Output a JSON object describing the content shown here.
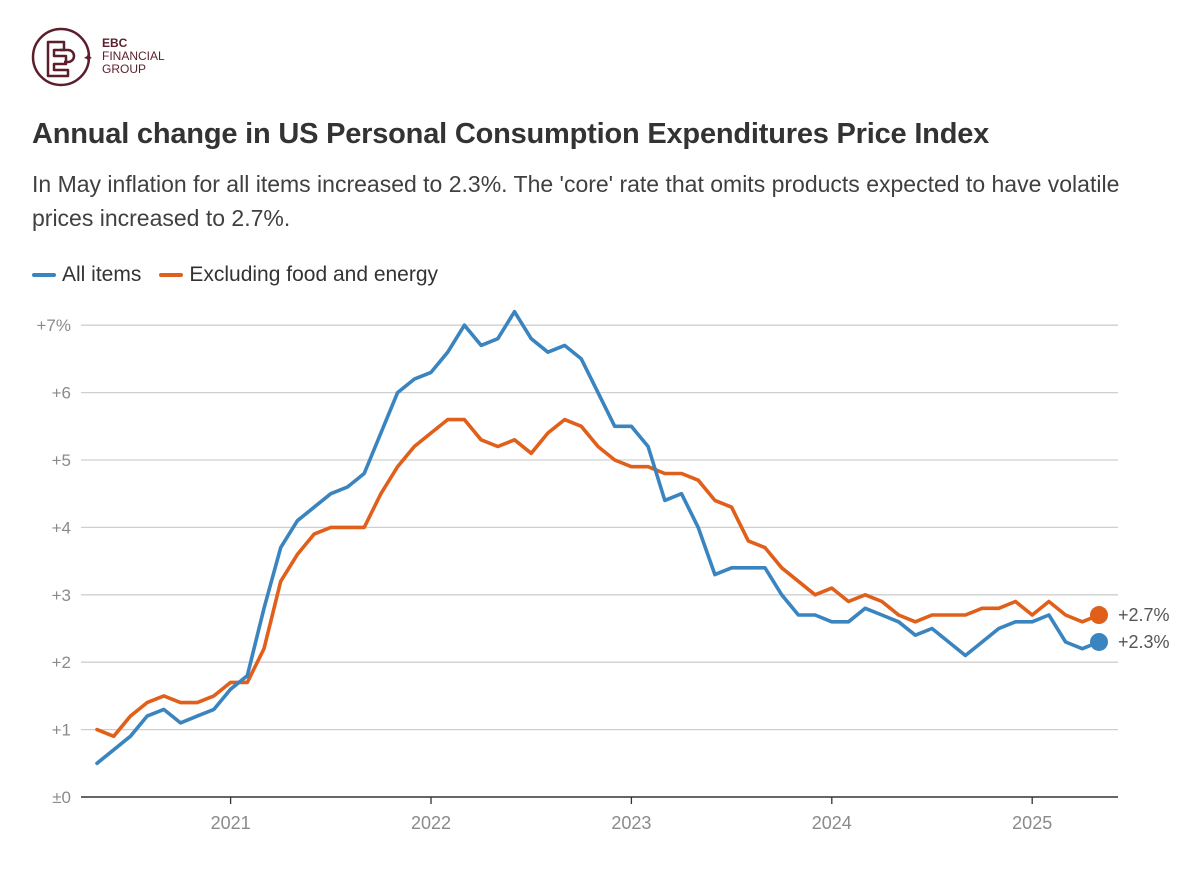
{
  "logo": {
    "brand": "EBC",
    "line2": "FINANCIAL",
    "line3": "GROUP",
    "color": "#5b1e2c"
  },
  "chart_data": {
    "type": "line",
    "title": "Annual change in US Personal Consumption Expenditures Price Index",
    "subtitle": "In May inflation for all items increased to 2.3%. The 'core' rate that omits products expected to have volatile prices increased to 2.7%.",
    "x_start": "2020-05",
    "x_end": "2025-05",
    "x_ticks": [
      "2021",
      "2022",
      "2023",
      "2024",
      "2025"
    ],
    "y_ticks": [
      "±0",
      "+1",
      "+2",
      "+3",
      "+4",
      "+5",
      "+6",
      "+7%"
    ],
    "ylim": [
      0,
      7
    ],
    "series": [
      {
        "name": "All items",
        "color": "#3a84c0",
        "end_label": "+2.3%",
        "values": [
          0.5,
          0.7,
          0.9,
          1.2,
          1.3,
          1.1,
          1.2,
          1.3,
          1.6,
          1.8,
          2.8,
          3.7,
          4.1,
          4.3,
          4.5,
          4.6,
          4.8,
          5.4,
          6.0,
          6.2,
          6.3,
          6.6,
          7.0,
          6.7,
          6.8,
          7.2,
          6.8,
          6.6,
          6.7,
          6.5,
          6.0,
          5.5,
          5.5,
          5.2,
          4.4,
          4.5,
          4.0,
          3.3,
          3.4,
          3.4,
          3.4,
          3.0,
          2.7,
          2.7,
          2.6,
          2.6,
          2.8,
          2.7,
          2.6,
          2.4,
          2.5,
          2.3,
          2.1,
          2.3,
          2.5,
          2.6,
          2.6,
          2.7,
          2.3,
          2.2,
          2.3
        ]
      },
      {
        "name": "Excluding food and energy",
        "color": "#e0601b",
        "end_label": "+2.7%",
        "values": [
          1.0,
          0.9,
          1.2,
          1.4,
          1.5,
          1.4,
          1.4,
          1.5,
          1.7,
          1.7,
          2.2,
          3.2,
          3.6,
          3.9,
          4.0,
          4.0,
          4.0,
          4.5,
          4.9,
          5.2,
          5.4,
          5.6,
          5.6,
          5.3,
          5.2,
          5.3,
          5.1,
          5.4,
          5.6,
          5.5,
          5.2,
          5.0,
          4.9,
          4.9,
          4.8,
          4.8,
          4.7,
          4.4,
          4.3,
          3.8,
          3.7,
          3.4,
          3.2,
          3.0,
          3.1,
          2.9,
          3.0,
          2.9,
          2.7,
          2.6,
          2.7,
          2.7,
          2.7,
          2.8,
          2.8,
          2.9,
          2.7,
          2.9,
          2.7,
          2.6,
          2.7
        ]
      }
    ]
  }
}
